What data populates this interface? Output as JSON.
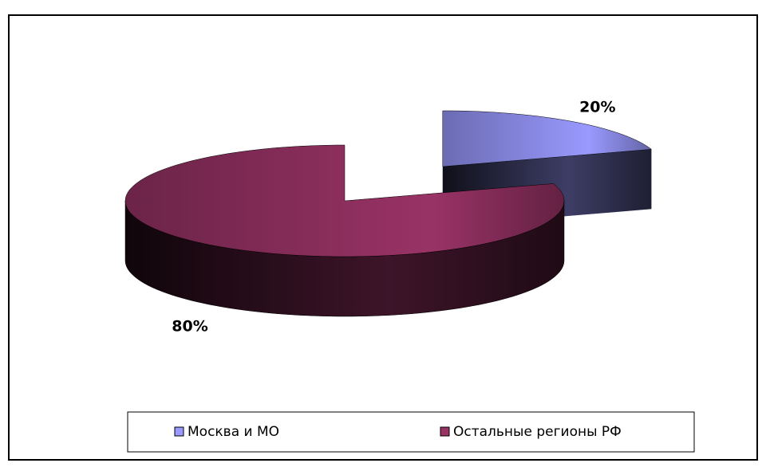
{
  "chart_data": {
    "type": "pie",
    "three_d": true,
    "categories": [
      "Москва и МО",
      "Остальные регионы РФ"
    ],
    "values": [
      20,
      80
    ],
    "value_labels": [
      "20%",
      "80%"
    ],
    "colors": [
      "#9999ff",
      "#993366"
    ],
    "legend": "bottom"
  }
}
